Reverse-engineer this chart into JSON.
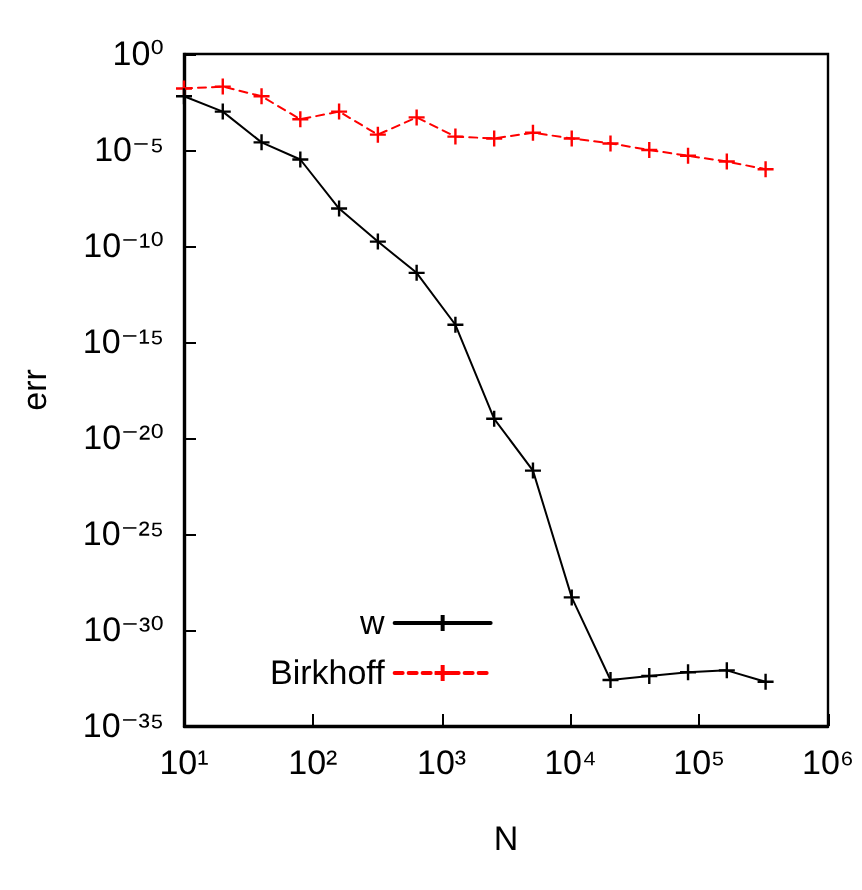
{
  "chart_data": {
    "type": "line",
    "xlabel": "N",
    "ylabel": "err",
    "log": "xy",
    "grid": false,
    "legend": "bottom left",
    "x": [
      10,
      20,
      40,
      80,
      160,
      320,
      640,
      1280,
      2560,
      5120,
      10240,
      20480,
      40960,
      81920,
      163840,
      327680
    ],
    "series": [
      {
        "name": "w",
        "color": "#000000",
        "marker": "cross",
        "line_style": "solid",
        "values": [
          0.0063,
          0.001,
          2.5e-05,
          3.2e-06,
          8.9e-09,
          1.7e-10,
          4e-12,
          7.9e-15,
          1e-19,
          2e-22,
          5e-29,
          2.5e-33,
          4e-33,
          6.3e-33,
          7.9e-33,
          2e-33
        ]
      },
      {
        "name": "Birkhoff",
        "color": "#ff0000",
        "marker": "cross",
        "line_style": "dashed",
        "values": [
          0.016,
          0.02,
          0.0063,
          0.0004,
          0.001,
          6.3e-05,
          0.0005,
          5e-05,
          4e-05,
          7.9e-05,
          4e-05,
          2.2e-05,
          1e-05,
          5e-06,
          2.5e-06,
          1e-06
        ]
      }
    ],
    "xlim": [
      10,
      1000000
    ],
    "xticks": [
      {
        "value": 10,
        "label": "10¹"
      },
      {
        "value": 100,
        "label": "10²"
      },
      {
        "value": 1000,
        "label": "10³"
      },
      {
        "value": 10000,
        "label": "10⁴"
      },
      {
        "value": 100000,
        "label": "10⁵"
      },
      {
        "value": 1000000,
        "label": "10⁶"
      }
    ],
    "ylim": [
      1e-35,
      1
    ],
    "yticks": [
      {
        "value": 1e-35,
        "label": "10⁻³⁵"
      },
      {
        "value": 1e-30,
        "label": "10⁻³⁰"
      },
      {
        "value": 1e-25,
        "label": "10⁻²⁵"
      },
      {
        "value": 1e-20,
        "label": "10⁻²⁰"
      },
      {
        "value": 1e-15,
        "label": "10⁻¹⁵"
      },
      {
        "value": 1e-10,
        "label": "10⁻¹⁰"
      },
      {
        "value": 1e-05,
        "label": "10⁻⁵"
      },
      {
        "value": 1,
        "label": "10⁰"
      }
    ]
  }
}
